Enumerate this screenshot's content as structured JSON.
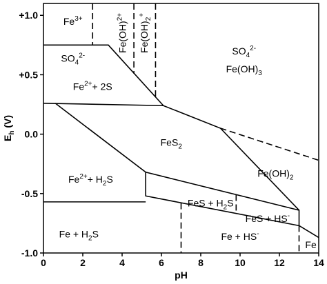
{
  "chart_data": {
    "type": "phase-diagram",
    "xlabel": [
      {
        "text": "pH"
      }
    ],
    "ylabel": [
      {
        "text": "E"
      },
      {
        "sub": "h"
      },
      {
        "text": " (V)"
      }
    ],
    "xlim": [
      0,
      14
    ],
    "ylim": [
      -1.0,
      1.1
    ],
    "xticks": [
      0,
      2,
      4,
      6,
      8,
      10,
      12,
      14
    ],
    "yticks": [
      {
        "value": -1.0,
        "label": "-1.0"
      },
      {
        "value": -0.5,
        "label": "-0.5"
      },
      {
        "value": 0.0,
        "label": "0.0"
      },
      {
        "value": 0.5,
        "label": "+0.5"
      },
      {
        "value": 1.0,
        "label": "+1.0"
      }
    ],
    "color": "#000000",
    "boundaries": [
      {
        "x": [
          0,
          3.3,
          6.1
        ],
        "y": [
          0.75,
          0.75,
          0.24
        ],
        "dashed": false
      },
      {
        "x": [
          0,
          6.1,
          9.0,
          13.0
        ],
        "y": [
          0.26,
          0.24,
          0.05,
          -0.64
        ],
        "dashed": false
      },
      {
        "x": [
          9.0,
          14
        ],
        "y": [
          0.05,
          -0.22
        ],
        "dashed": true
      },
      {
        "x": [
          0.6,
          5.2,
          13.0,
          13.0,
          14
        ],
        "y": [
          0.26,
          -0.32,
          -0.64,
          -0.77,
          -0.87
        ],
        "dashed": false
      },
      {
        "x": [
          5.2,
          5.2,
          13.0
        ],
        "y": [
          -0.32,
          -0.52,
          -0.77
        ],
        "dashed": false
      },
      {
        "x": [
          0,
          5.2
        ],
        "y": [
          -0.57,
          -0.57
        ],
        "dashed": false
      },
      {
        "x": [
          13.0,
          13.0
        ],
        "y": [
          -0.77,
          -1.0
        ],
        "dashed": true
      },
      {
        "x": [
          7.0,
          7.0
        ],
        "y": [
          -0.58,
          -1.0
        ],
        "dashed": true
      },
      {
        "x": [
          9.8,
          9.8
        ],
        "y": [
          -0.51,
          -0.67
        ],
        "dashed": true
      },
      {
        "x": [
          2.5,
          2.5
        ],
        "y": [
          1.1,
          0.75
        ],
        "dashed": true
      },
      {
        "x": [
          4.6,
          4.6
        ],
        "y": [
          1.1,
          0.51
        ],
        "dashed": true
      },
      {
        "x": [
          5.7,
          5.7
        ],
        "y": [
          1.1,
          0.31
        ],
        "dashed": true
      }
    ],
    "regions": [
      [
        {
          "text": "Fe"
        },
        {
          "sup": "3+"
        }
      ],
      [
        {
          "text": "Fe(OH)"
        },
        {
          "sup": "2+"
        }
      ],
      [
        {
          "text": "Fe(OH)"
        },
        {
          "sub": "2"
        },
        {
          "sup": "+"
        }
      ],
      [
        {
          "text": "SO"
        },
        {
          "sub": "4"
        },
        {
          "sup": "2-"
        }
      ],
      [
        {
          "text": "Fe"
        },
        {
          "sup": "2+"
        },
        {
          "text": "+ 2S"
        }
      ],
      [
        {
          "text": "SO"
        },
        {
          "sub": "4"
        },
        {
          "sup": "2-"
        }
      ],
      [
        {
          "text": "Fe(OH)"
        },
        {
          "sub": "3"
        }
      ],
      [
        {
          "text": "FeS"
        },
        {
          "sub": "2"
        }
      ],
      [
        {
          "text": "Fe(OH)"
        },
        {
          "sub": "2"
        }
      ],
      [
        {
          "text": "Fe"
        },
        {
          "sup": "2+"
        },
        {
          "text": "+ H"
        },
        {
          "sub": "2"
        },
        {
          "text": "S"
        }
      ],
      [
        {
          "text": "FeS + H"
        },
        {
          "sub": "2"
        },
        {
          "text": "S"
        }
      ],
      [
        {
          "text": "FeS + HS"
        },
        {
          "sup": "-"
        }
      ],
      [
        {
          "text": "Fe + H"
        },
        {
          "sub": "2"
        },
        {
          "text": "S"
        }
      ],
      [
        {
          "text": "Fe + HS"
        },
        {
          "sup": "-"
        }
      ],
      [
        {
          "text": "Fe"
        }
      ]
    ]
  }
}
